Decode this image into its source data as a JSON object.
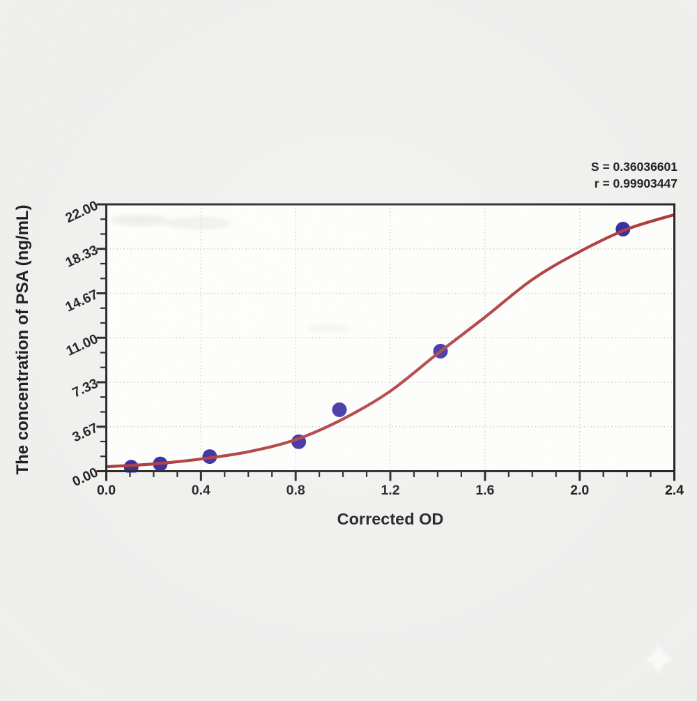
{
  "chart_data": {
    "type": "scatter",
    "title": "",
    "xlabel": "Corrected OD",
    "ylabel": "The concentration of PSA (ng/mL)",
    "xlim": [
      0.0,
      2.4
    ],
    "ylim": [
      0.0,
      22.0
    ],
    "grid": {
      "style": "dotted",
      "color": "#c9c9c6",
      "on": true
    },
    "x_ticks": {
      "values": [
        0.0,
        0.4,
        0.8,
        1.2,
        1.6,
        2.0,
        2.4
      ],
      "labels": [
        "0.0",
        "0.4",
        "0.8",
        "1.2",
        "1.6",
        "2.0",
        "2.4"
      ],
      "minor_step": 0.1
    },
    "y_ticks": {
      "values": [
        0.0,
        3.667,
        7.333,
        11.0,
        14.667,
        18.333,
        22.0
      ],
      "labels": [
        "0.00",
        "3.67",
        "7.33",
        "11.00",
        "14.67",
        "18.33",
        "22.00"
      ],
      "minor_per_major": 2
    },
    "series": [
      {
        "name": "standard-points",
        "kind": "scatter",
        "color": "#2a1f9b",
        "marker_radius": 10.5,
        "points": [
          [
            0.105,
            0.33
          ],
          [
            0.228,
            0.6
          ],
          [
            0.437,
            1.2
          ],
          [
            0.813,
            2.43
          ],
          [
            0.985,
            5.07
          ],
          [
            1.412,
            9.9
          ],
          [
            2.183,
            19.96
          ]
        ]
      },
      {
        "name": "fitted-curve",
        "kind": "line",
        "color": "#a83030",
        "width": 4.2,
        "points": [
          [
            0.0,
            0.37
          ],
          [
            0.2,
            0.6
          ],
          [
            0.4,
            1.0
          ],
          [
            0.6,
            1.6
          ],
          [
            0.8,
            2.6
          ],
          [
            1.0,
            4.3
          ],
          [
            1.2,
            6.6
          ],
          [
            1.4,
            9.7
          ],
          [
            1.6,
            12.7
          ],
          [
            1.8,
            15.8
          ],
          [
            2.0,
            18.1
          ],
          [
            2.2,
            19.95
          ],
          [
            2.4,
            21.15
          ]
        ]
      }
    ],
    "annotations": {
      "s_label": "S = 0.36036601",
      "r_label": "r = 0.99903447"
    },
    "axis_color": "#1b1b1b",
    "plot_bg": "#fdfdfb",
    "page_bg": "#efefed",
    "legend": "none"
  }
}
